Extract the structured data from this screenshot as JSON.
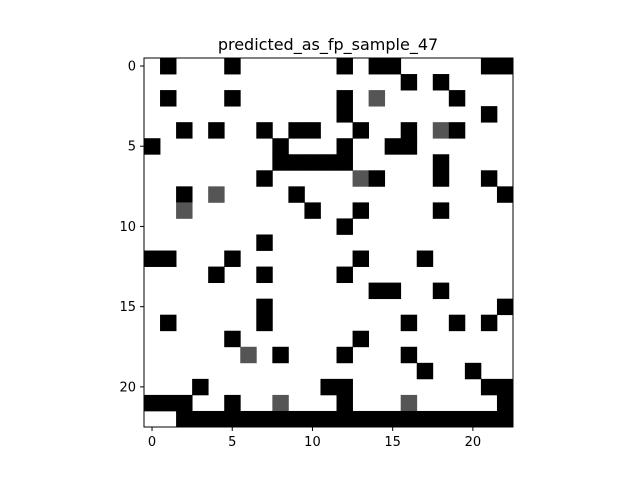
{
  "chart_data": {
    "type": "heatmap",
    "title": "predicted_as_fp_sample_47",
    "xlabel": "",
    "ylabel": "",
    "xlim": [
      -0.5,
      22.5
    ],
    "ylim": [
      22.5,
      -0.5
    ],
    "x_ticks": [
      0,
      5,
      10,
      15,
      20
    ],
    "y_ticks": [
      0,
      5,
      10,
      15,
      20
    ],
    "grid": false,
    "colormap": "gray_r",
    "value_scale": {
      "0": "#ffffff",
      "1": "#555555",
      "2": "#000000"
    },
    "rows": [
      [
        0,
        2,
        0,
        0,
        0,
        2,
        0,
        0,
        0,
        0,
        0,
        0,
        2,
        0,
        2,
        2,
        0,
        0,
        0,
        0,
        0,
        2,
        2
      ],
      [
        0,
        0,
        0,
        0,
        0,
        0,
        0,
        0,
        0,
        0,
        0,
        0,
        0,
        0,
        0,
        0,
        2,
        0,
        2,
        0,
        0,
        0,
        0
      ],
      [
        0,
        2,
        0,
        0,
        0,
        2,
        0,
        0,
        0,
        0,
        0,
        0,
        2,
        0,
        1,
        0,
        0,
        0,
        0,
        2,
        0,
        0,
        0
      ],
      [
        0,
        0,
        0,
        0,
        0,
        0,
        0,
        0,
        0,
        0,
        0,
        0,
        2,
        0,
        0,
        0,
        0,
        0,
        0,
        0,
        0,
        2,
        0
      ],
      [
        0,
        0,
        2,
        0,
        2,
        0,
        0,
        2,
        0,
        2,
        2,
        0,
        0,
        2,
        0,
        0,
        2,
        0,
        1,
        2,
        0,
        0,
        0
      ],
      [
        2,
        0,
        0,
        0,
        0,
        0,
        0,
        0,
        2,
        0,
        0,
        0,
        2,
        0,
        0,
        2,
        2,
        0,
        0,
        0,
        0,
        0,
        0
      ],
      [
        0,
        0,
        0,
        0,
        0,
        0,
        0,
        0,
        2,
        2,
        2,
        2,
        2,
        0,
        0,
        0,
        0,
        0,
        2,
        0,
        0,
        0,
        0
      ],
      [
        0,
        0,
        0,
        0,
        0,
        0,
        0,
        2,
        0,
        0,
        0,
        0,
        0,
        1,
        2,
        0,
        0,
        0,
        2,
        0,
        0,
        2,
        0
      ],
      [
        0,
        0,
        2,
        0,
        1,
        0,
        0,
        0,
        0,
        2,
        0,
        0,
        0,
        0,
        0,
        0,
        0,
        0,
        0,
        0,
        0,
        0,
        2
      ],
      [
        0,
        0,
        1,
        0,
        0,
        0,
        0,
        0,
        0,
        0,
        2,
        0,
        0,
        2,
        0,
        0,
        0,
        0,
        2,
        0,
        0,
        0,
        0
      ],
      [
        0,
        0,
        0,
        0,
        0,
        0,
        0,
        0,
        0,
        0,
        0,
        0,
        2,
        0,
        0,
        0,
        0,
        0,
        0,
        0,
        0,
        0,
        0
      ],
      [
        0,
        0,
        0,
        0,
        0,
        0,
        0,
        2,
        0,
        0,
        0,
        0,
        0,
        0,
        0,
        0,
        0,
        0,
        0,
        0,
        0,
        0,
        0
      ],
      [
        2,
        2,
        0,
        0,
        0,
        2,
        0,
        0,
        0,
        0,
        0,
        0,
        0,
        2,
        0,
        0,
        0,
        2,
        0,
        0,
        0,
        0,
        0
      ],
      [
        0,
        0,
        0,
        0,
        2,
        0,
        0,
        2,
        0,
        0,
        0,
        0,
        2,
        0,
        0,
        0,
        0,
        0,
        0,
        0,
        0,
        0,
        0
      ],
      [
        0,
        0,
        0,
        0,
        0,
        0,
        0,
        0,
        0,
        0,
        0,
        0,
        0,
        0,
        2,
        2,
        0,
        0,
        2,
        0,
        0,
        0,
        0
      ],
      [
        0,
        0,
        0,
        0,
        0,
        0,
        0,
        2,
        0,
        0,
        0,
        0,
        0,
        0,
        0,
        0,
        0,
        0,
        0,
        0,
        0,
        0,
        2
      ],
      [
        0,
        2,
        0,
        0,
        0,
        0,
        0,
        2,
        0,
        0,
        0,
        0,
        0,
        0,
        0,
        0,
        2,
        0,
        0,
        2,
        0,
        2,
        0
      ],
      [
        0,
        0,
        0,
        0,
        0,
        2,
        0,
        0,
        0,
        0,
        0,
        0,
        0,
        2,
        0,
        0,
        0,
        0,
        0,
        0,
        0,
        0,
        0
      ],
      [
        0,
        0,
        0,
        0,
        0,
        0,
        1,
        0,
        2,
        0,
        0,
        0,
        2,
        0,
        0,
        0,
        2,
        0,
        0,
        0,
        0,
        0,
        0
      ],
      [
        0,
        0,
        0,
        0,
        0,
        0,
        0,
        0,
        0,
        0,
        0,
        0,
        0,
        0,
        0,
        0,
        0,
        2,
        0,
        0,
        2,
        0,
        0
      ],
      [
        0,
        0,
        0,
        2,
        0,
        0,
        0,
        0,
        0,
        0,
        0,
        2,
        2,
        0,
        0,
        0,
        0,
        0,
        0,
        0,
        0,
        2,
        2
      ],
      [
        2,
        2,
        2,
        0,
        0,
        2,
        0,
        0,
        1,
        0,
        0,
        0,
        2,
        0,
        0,
        0,
        1,
        0,
        0,
        0,
        0,
        0,
        2
      ],
      [
        0,
        0,
        2,
        2,
        2,
        2,
        2,
        2,
        2,
        2,
        2,
        2,
        2,
        2,
        2,
        2,
        2,
        2,
        2,
        2,
        2,
        2,
        2
      ]
    ]
  }
}
